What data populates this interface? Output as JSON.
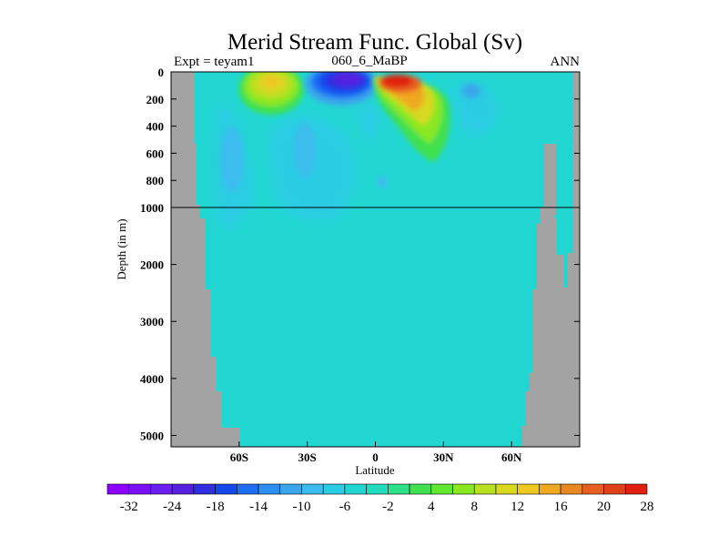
{
  "chart_data": {
    "type": "heatmap",
    "title": "Merid Stream Func. Global (Sv)",
    "subtitle_left": "Expt = teyam1",
    "subtitle_center": "060_6_MaBP",
    "subtitle_right": "ANN",
    "xlabel": "Latitude",
    "ylabel": "Depth (in m)",
    "xlim": [
      -90,
      90
    ],
    "x_ticks": [
      {
        "value": -60,
        "label": "60S"
      },
      {
        "value": -30,
        "label": "30S"
      },
      {
        "value": 0,
        "label": "0"
      },
      {
        "value": 30,
        "label": "30N"
      },
      {
        "value": 60,
        "label": "60N"
      }
    ],
    "y_upper": {
      "range": [
        0,
        1000
      ],
      "ticks": [
        0,
        200,
        400,
        600,
        800,
        1000
      ]
    },
    "y_lower": {
      "range": [
        1000,
        5200
      ],
      "ticks": [
        2000,
        3000,
        4000,
        5000
      ]
    },
    "y_split_depth": 1000,
    "colorbar": {
      "colors": [
        "#8b00ff",
        "#7a10f5",
        "#6a1ff0",
        "#5520e0",
        "#2f2fe0",
        "#1448ec",
        "#1e6ef4",
        "#2c8ef0",
        "#3aa6ec",
        "#3cbcee",
        "#2ccce4",
        "#22d6d2",
        "#22dcbe",
        "#2ee08a",
        "#40e050",
        "#60e830",
        "#8ae820",
        "#b8e020",
        "#d8d820",
        "#eec820",
        "#f0a820",
        "#e88820",
        "#e86020",
        "#e04018",
        "#e02010"
      ],
      "labels": [
        "-32",
        "-24",
        "-18",
        "-14",
        "-10",
        "-6",
        "-2",
        "4",
        "8",
        "12",
        "16",
        "20",
        "28"
      ]
    },
    "land_color": "#a3a3a3",
    "background_level_color": "#22d6d2",
    "features": [
      {
        "lat": -38,
        "depth": 50,
        "value": 12
      },
      {
        "lat": -38,
        "depth": 120,
        "value": 4
      },
      {
        "lat": -10,
        "depth": 40,
        "value": -28
      },
      {
        "lat": -10,
        "depth": 100,
        "value": -14
      },
      {
        "lat": 8,
        "depth": 40,
        "value": 28
      },
      {
        "lat": 14,
        "depth": 150,
        "value": 16
      },
      {
        "lat": 24,
        "depth": 300,
        "value": 6
      },
      {
        "lat": -62,
        "depth": 500,
        "value": -4
      },
      {
        "lat": -28,
        "depth": 500,
        "value": -4
      },
      {
        "lat": 40,
        "depth": 100,
        "value": -2
      }
    ]
  }
}
